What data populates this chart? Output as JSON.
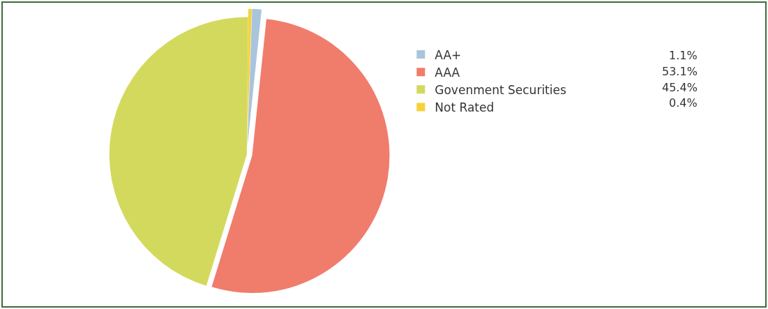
{
  "chart_data": {
    "type": "pie",
    "categories": [
      "AA+",
      "AAA",
      "Govenment Securities",
      "Not Rated"
    ],
    "values": [
      1.1,
      53.1,
      45.4,
      0.4
    ],
    "colors": [
      "#a9c4dd",
      "#f07c6b",
      "#d3d95c",
      "#f6d23a"
    ],
    "value_labels": [
      "1.1%",
      "53.1%",
      "45.4%",
      "0.4%"
    ],
    "legend": "top right"
  }
}
